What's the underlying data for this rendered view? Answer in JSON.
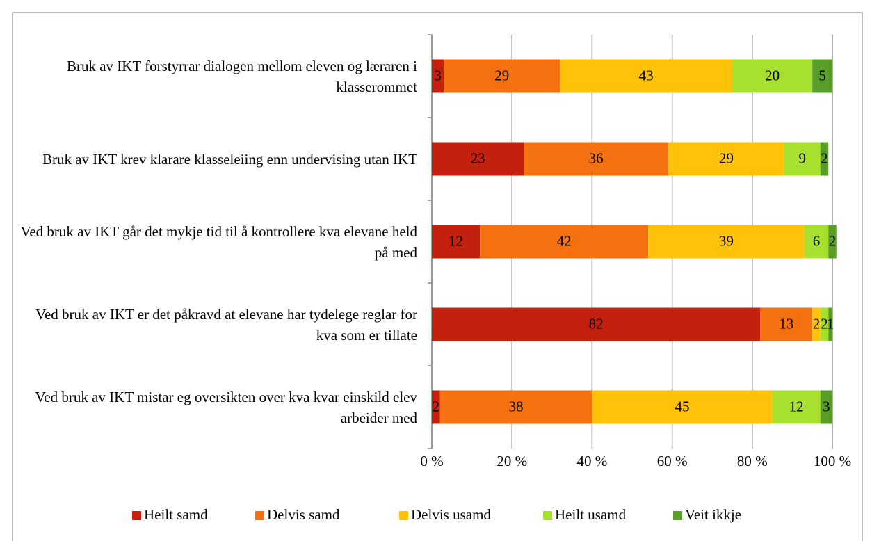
{
  "chart_data": {
    "type": "stacked-bar-horizontal",
    "categories": [
      "Bruk av IKT forstyrrar dialogen mellom eleven og læraren i klasserommet",
      "Bruk av IKT krev klarare klasseleiing enn undervising utan IKT",
      "Ved bruk av IKT går det mykje tid til å kontrollere kva elevane held på med",
      "Ved bruk av IKT er det påkravd at elevane har tydelege reglar for kva som er tillate",
      "Ved bruk av IKT mistar eg oversikten over kva kvar einskild elev arbeider med"
    ],
    "series": [
      {
        "name": "Heilt samd",
        "color": "#c4200e",
        "values": [
          3,
          23,
          12,
          82,
          2
        ]
      },
      {
        "name": "Delvis samd",
        "color": "#f5700f",
        "values": [
          29,
          36,
          42,
          13,
          38
        ]
      },
      {
        "name": "Delvis usamd",
        "color": "#ffc20a",
        "values": [
          43,
          29,
          39,
          2,
          45
        ]
      },
      {
        "name": "Heilt usamd",
        "color": "#a8e030",
        "values": [
          20,
          9,
          6,
          2,
          12
        ]
      },
      {
        "name": "Veit ikkje",
        "color": "#5a9e2a",
        "values": [
          5,
          2,
          2,
          1,
          3
        ]
      }
    ],
    "xlim": [
      0,
      100
    ],
    "xticks": [
      {
        "value": 0,
        "label": "0 %"
      },
      {
        "value": 20,
        "label": "20 %"
      },
      {
        "value": 40,
        "label": "40 %"
      },
      {
        "value": 60,
        "label": "60 %"
      },
      {
        "value": 80,
        "label": "80 %"
      },
      {
        "value": 100,
        "label": "100 %"
      }
    ],
    "grid": true,
    "legend": "bottom"
  }
}
